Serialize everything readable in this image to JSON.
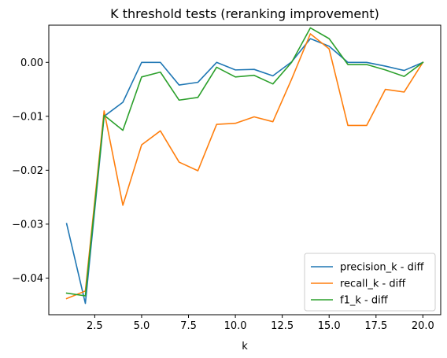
{
  "chart_data": {
    "type": "line",
    "title": "K threshold tests (reranking improvement)",
    "xlabel": "k",
    "ylabel": "",
    "xlim": [
      0.05,
      20.95
    ],
    "ylim": [
      -0.0468,
      0.0069
    ],
    "xticks": [
      2.5,
      5.0,
      7.5,
      10.0,
      12.5,
      15.0,
      17.5,
      20.0
    ],
    "xtick_labels": [
      "2.5",
      "5.0",
      "7.5",
      "10.0",
      "12.5",
      "15.0",
      "17.5",
      "20.0"
    ],
    "yticks": [
      0.0,
      -0.01,
      -0.02,
      -0.03,
      -0.04
    ],
    "ytick_labels": [
      "0.00",
      "−0.01",
      "−0.02",
      "−0.03",
      "−0.04"
    ],
    "grid": false,
    "legend_position": "lower-right",
    "x": [
      1,
      2,
      3,
      4,
      5,
      6,
      7,
      8,
      9,
      10,
      11,
      12,
      13,
      14,
      15,
      16,
      17,
      18,
      19,
      20
    ],
    "series": [
      {
        "name": "precision_k - diff",
        "color": "#1f77b4",
        "values": [
          -0.0299,
          -0.0447,
          -0.01,
          -0.0074,
          0.0,
          0.0,
          -0.0042,
          -0.0037,
          0.0,
          -0.0014,
          -0.0013,
          -0.0025,
          0.0001,
          0.0044,
          0.003,
          0.0,
          0.0,
          -0.0007,
          -0.0015,
          0.0
        ]
      },
      {
        "name": "recall_k - diff",
        "color": "#ff7f0e",
        "values": [
          -0.0438,
          -0.0424,
          -0.009,
          -0.0265,
          -0.0153,
          -0.0127,
          -0.0185,
          -0.0201,
          -0.0115,
          -0.0113,
          -0.0101,
          -0.011,
          -0.0031,
          0.0053,
          0.0025,
          -0.0117,
          -0.0117,
          -0.005,
          -0.0055,
          0.0
        ]
      },
      {
        "name": "f1_k - diff",
        "color": "#2ca02c",
        "values": [
          -0.0428,
          -0.0433,
          -0.0098,
          -0.0126,
          -0.0027,
          -0.0018,
          -0.007,
          -0.0065,
          -0.0009,
          -0.0027,
          -0.0024,
          -0.004,
          0.0,
          0.0064,
          0.0044,
          -0.0004,
          -0.0004,
          -0.0014,
          -0.0026,
          0.0
        ]
      }
    ]
  }
}
